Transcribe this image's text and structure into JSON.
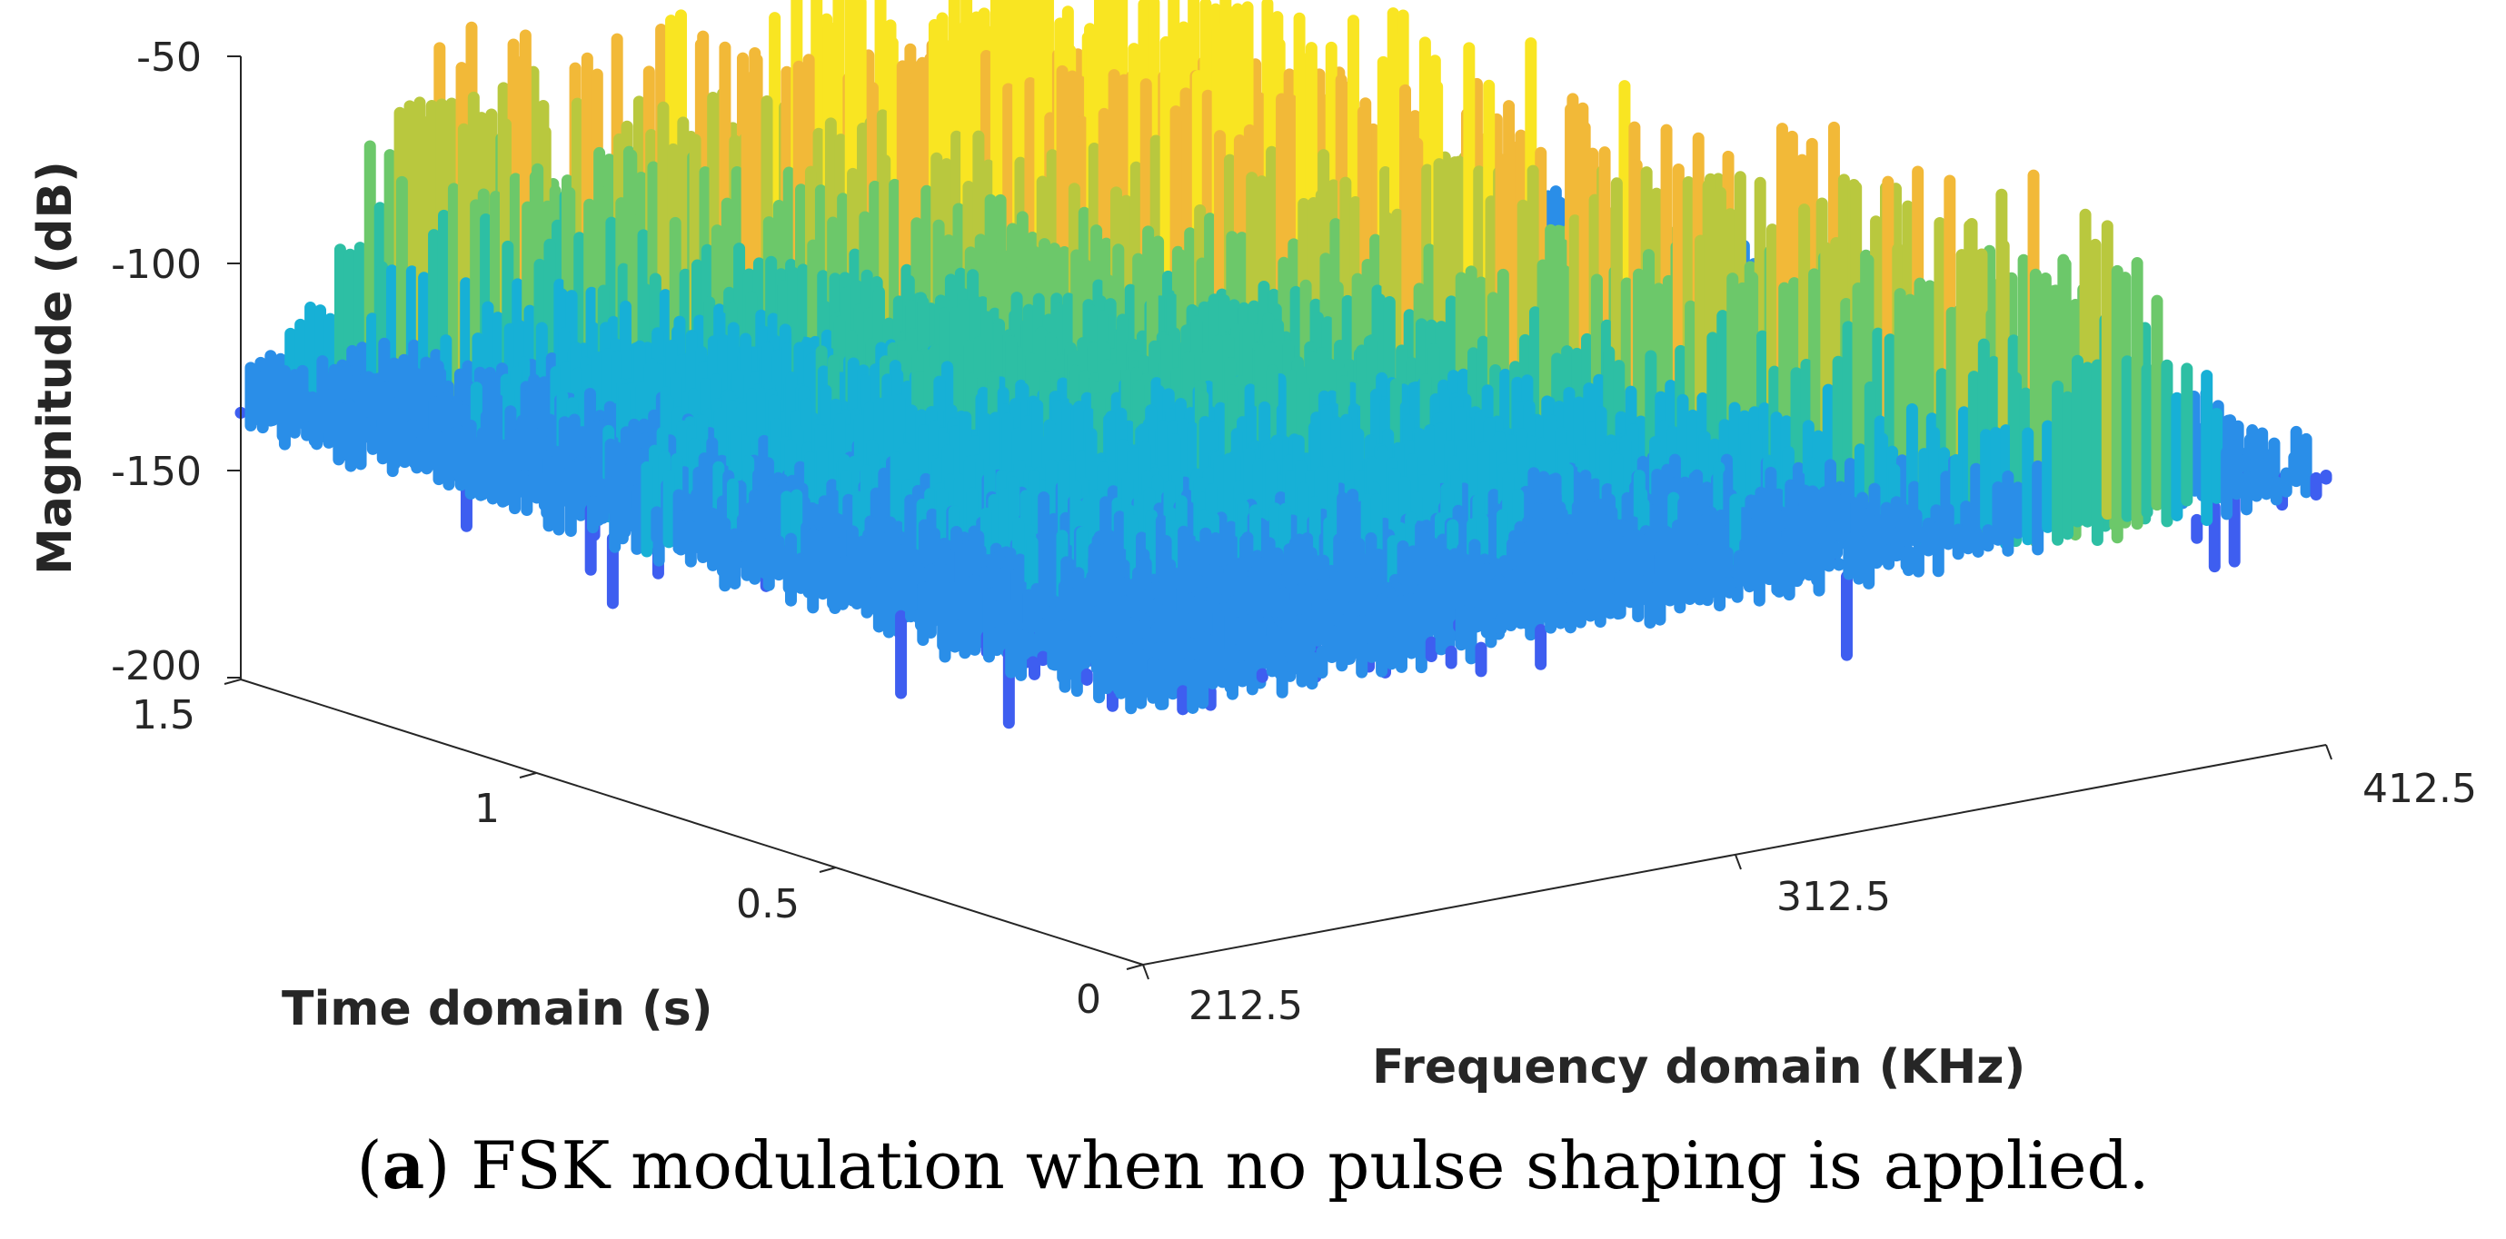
{
  "caption": {
    "tag": "a",
    "text": "FSK modulation when no pulse shaping is applied."
  },
  "chart_data": {
    "type": "surface",
    "title": "",
    "zlabel": "Magnitude (dB)",
    "xlabel": "Frequency domain (KHz)",
    "ylabel": "Time domain (s)",
    "zlim": [
      -200,
      -50
    ],
    "xlim": [
      212.5,
      412.5
    ],
    "ylim": [
      0,
      1.5
    ],
    "z_ticks": [
      "-50",
      "-100",
      "-150",
      "-200"
    ],
    "z_tick_values": [
      -50,
      -100,
      -150,
      -200
    ],
    "x_ticks": [
      "212.5",
      "312.5",
      "412.5"
    ],
    "x_tick_values": [
      212.5,
      312.5,
      412.5
    ],
    "y_ticks": [
      "0",
      "0.5",
      "1",
      "1.5"
    ],
    "y_tick_values": [
      0,
      0.5,
      1,
      1.5
    ],
    "noise_floor_db": -150,
    "peak_db": -50,
    "colormap": [
      "#3e5ef0",
      "#2a8ee8",
      "#17b0d6",
      "#2dbfa4",
      "#6cc86a",
      "#b9c83e",
      "#f2b938",
      "#f9e522"
    ],
    "axis_color": "#262626"
  }
}
